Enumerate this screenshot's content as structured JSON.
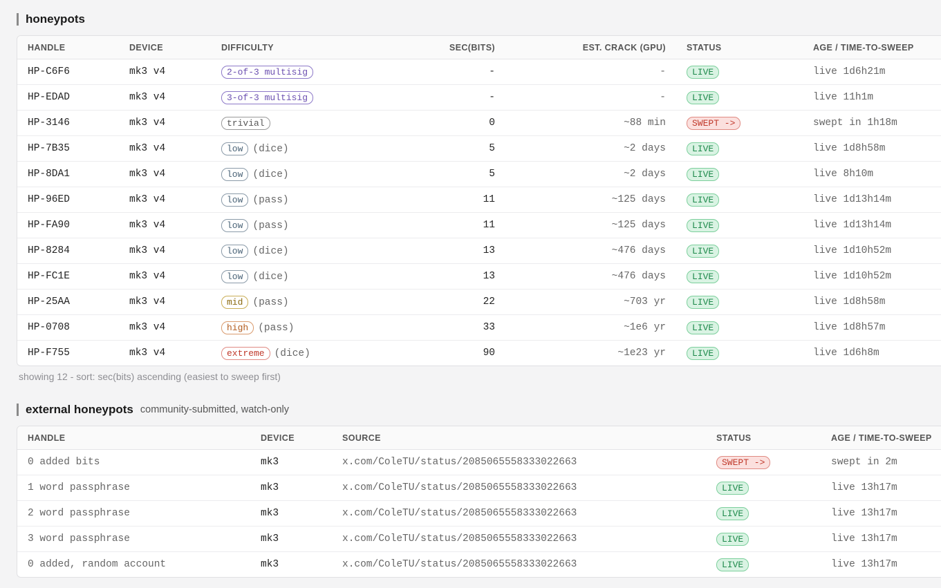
{
  "honeypots": {
    "title": "honeypots",
    "headers": [
      "HANDLE",
      "DEVICE",
      "DIFFICULTY",
      "SEC(BITS)",
      "EST. CRACK (GPU)",
      "STATUS",
      "AGE / TIME-TO-SWEEP"
    ],
    "rows": [
      {
        "handle": "HP-C6F6",
        "device": "mk3 v4",
        "difficulty": "2-of-3 multisig",
        "tone": "purple",
        "note": "",
        "bits": "-",
        "crack": "-",
        "status": "LIVE",
        "age": "live 1d6h21m"
      },
      {
        "handle": "HP-EDAD",
        "device": "mk3 v4",
        "difficulty": "3-of-3 multisig",
        "tone": "purple",
        "note": "",
        "bits": "-",
        "crack": "-",
        "status": "LIVE",
        "age": "live 11h1m"
      },
      {
        "handle": "HP-3146",
        "device": "mk3 v4",
        "difficulty": "trivial",
        "tone": "gray",
        "note": "",
        "bits": "0",
        "crack": "~88 min",
        "status": "SWEPT ->",
        "age": "swept in 1h18m"
      },
      {
        "handle": "HP-7B35",
        "device": "mk3 v4",
        "difficulty": "low",
        "tone": "slate",
        "note": "(dice)",
        "bits": "5",
        "crack": "~2 days",
        "status": "LIVE",
        "age": "live 1d8h58m"
      },
      {
        "handle": "HP-8DA1",
        "device": "mk3 v4",
        "difficulty": "low",
        "tone": "slate",
        "note": "(dice)",
        "bits": "5",
        "crack": "~2 days",
        "status": "LIVE",
        "age": "live 8h10m"
      },
      {
        "handle": "HP-96ED",
        "device": "mk3 v4",
        "difficulty": "low",
        "tone": "slate",
        "note": "(pass)",
        "bits": "11",
        "crack": "~125 days",
        "status": "LIVE",
        "age": "live 1d13h14m"
      },
      {
        "handle": "HP-FA90",
        "device": "mk3 v4",
        "difficulty": "low",
        "tone": "slate",
        "note": "(pass)",
        "bits": "11",
        "crack": "~125 days",
        "status": "LIVE",
        "age": "live 1d13h14m"
      },
      {
        "handle": "HP-8284",
        "device": "mk3 v4",
        "difficulty": "low",
        "tone": "slate",
        "note": "(dice)",
        "bits": "13",
        "crack": "~476 days",
        "status": "LIVE",
        "age": "live 1d10h52m"
      },
      {
        "handle": "HP-FC1E",
        "device": "mk3 v4",
        "difficulty": "low",
        "tone": "slate",
        "note": "(dice)",
        "bits": "13",
        "crack": "~476 days",
        "status": "LIVE",
        "age": "live 1d10h52m"
      },
      {
        "handle": "HP-25AA",
        "device": "mk3 v4",
        "difficulty": "mid",
        "tone": "olive",
        "note": "(pass)",
        "bits": "22",
        "crack": "~703 yr",
        "status": "LIVE",
        "age": "live 1d8h58m"
      },
      {
        "handle": "HP-0708",
        "device": "mk3 v4",
        "difficulty": "high",
        "tone": "orange",
        "note": "(pass)",
        "bits": "33",
        "crack": "~1e6 yr",
        "status": "LIVE",
        "age": "live 1d8h57m"
      },
      {
        "handle": "HP-F755",
        "device": "mk3 v4",
        "difficulty": "extreme",
        "tone": "red",
        "note": "(dice)",
        "bits": "90",
        "crack": "~1e23 yr",
        "status": "LIVE",
        "age": "live 1d6h8m"
      }
    ],
    "caption": "showing 12 - sort: sec(bits) ascending (easiest to sweep first)"
  },
  "external": {
    "title": "external honeypots",
    "subtitle": "community-submitted, watch-only",
    "headers": [
      "HANDLE",
      "DEVICE",
      "SOURCE",
      "STATUS",
      "AGE / TIME-TO-SWEEP"
    ],
    "rows": [
      {
        "handle": "0 added bits",
        "device": "mk3",
        "source": "x.com/ColeTU/status/2085065558333022663",
        "status": "SWEPT ->",
        "age": "swept in 2m"
      },
      {
        "handle": "1 word passphrase",
        "device": "mk3",
        "source": "x.com/ColeTU/status/2085065558333022663",
        "status": "LIVE",
        "age": "live 13h17m"
      },
      {
        "handle": "2 word passphrase",
        "device": "mk3",
        "source": "x.com/ColeTU/status/2085065558333022663",
        "status": "LIVE",
        "age": "live 13h17m"
      },
      {
        "handle": "3 word passphrase",
        "device": "mk3",
        "source": "x.com/ColeTU/status/2085065558333022663",
        "status": "LIVE",
        "age": "live 13h17m"
      },
      {
        "handle": "0 added, random account",
        "device": "mk3",
        "source": "x.com/ColeTU/status/2085065558333022663",
        "status": "LIVE",
        "age": "live 13h17m"
      }
    ]
  },
  "colors": {
    "live": "#1f8a4c",
    "swept": "#c0392b",
    "purple": "#6b4fb0",
    "olive": "#8a6a10",
    "orange": "#b25a1c"
  }
}
